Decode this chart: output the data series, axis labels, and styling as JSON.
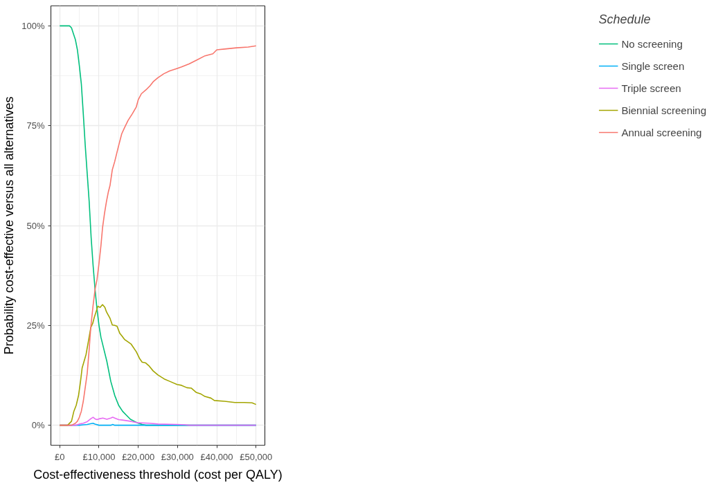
{
  "chart_data": {
    "type": "line",
    "xlabel": "Cost-effectiveness threshold (cost per QALY)",
    "ylabel": "Probability cost-effective versus all alternatives",
    "legend_title": "Schedule",
    "legend": "right",
    "grid": true,
    "line_style": "solid",
    "marker": "none",
    "xlim": [
      -2250,
      52250
    ],
    "ylim": [
      -5,
      105
    ],
    "xticks": [
      {
        "value": 0,
        "label": "£0"
      },
      {
        "value": 10000,
        "label": "£10,000"
      },
      {
        "value": 20000,
        "label": "£20,000"
      },
      {
        "value": 30000,
        "label": "£30,000"
      },
      {
        "value": 40000,
        "label": "£40,000"
      },
      {
        "value": 50000,
        "label": "£50,000"
      }
    ],
    "yticks": [
      {
        "value": 0,
        "label": "0%"
      },
      {
        "value": 25,
        "label": "25%"
      },
      {
        "value": 50,
        "label": "50%"
      },
      {
        "value": 75,
        "label": "75%"
      },
      {
        "value": 100,
        "label": "100%"
      }
    ],
    "series": [
      {
        "name": "No screening",
        "color": "#00bf7d",
        "x": [
          0,
          2000,
          2500,
          3000,
          3500,
          4000,
          4500,
          5000,
          5500,
          6000,
          6500,
          7000,
          7500,
          8000,
          8500,
          9000,
          9500,
          10000,
          10500,
          11000,
          12000,
          13000,
          14000,
          15000,
          16000,
          17000,
          18000,
          19000,
          20000,
          21000,
          22000,
          50000
        ],
        "values": [
          100,
          100,
          100,
          99.5,
          98,
          96.5,
          94,
          90,
          85.5,
          78,
          70,
          63,
          56,
          47,
          40,
          34,
          29,
          25,
          22,
          20,
          16,
          11,
          7.5,
          5,
          3.5,
          2.5,
          1.5,
          1,
          0.5,
          0.2,
          0,
          0
        ]
      },
      {
        "name": "Single screen",
        "color": "#00b0f6",
        "x": [
          0,
          5000,
          6000,
          7000,
          8000,
          8500,
          9000,
          10000,
          13000,
          13500,
          14000,
          50000
        ],
        "values": [
          0,
          0,
          0.1,
          0.2,
          0.4,
          0.5,
          0.3,
          0,
          0,
          0.2,
          0,
          0
        ]
      },
      {
        "name": "Triple screen",
        "color": "#e76bf3",
        "x": [
          0,
          4000,
          5000,
          6000,
          7000,
          8000,
          8500,
          9000,
          9500,
          10000,
          11000,
          12000,
          13000,
          13500,
          14000,
          15000,
          16000,
          18000,
          20000,
          23000,
          25000,
          30000,
          32000,
          33000,
          50000
        ],
        "values": [
          0,
          0,
          0.3,
          0.5,
          0.9,
          1.7,
          2,
          1.6,
          1.4,
          1.6,
          1.8,
          1.5,
          1.8,
          2,
          1.8,
          1.4,
          1.3,
          1,
          0.6,
          0.5,
          0.3,
          0.2,
          0.1,
          0,
          0
        ]
      },
      {
        "name": "Biennial screening",
        "color": "#a3a500",
        "x": [
          0,
          2000,
          3000,
          3600,
          4200,
          4800,
          5300,
          5700,
          6200,
          6700,
          7300,
          7900,
          8400,
          8800,
          9300,
          9700,
          10300,
          10900,
          11500,
          11900,
          12400,
          12800,
          13400,
          14000,
          14600,
          15300,
          15800,
          16500,
          17200,
          18200,
          19500,
          20400,
          21000,
          21900,
          22800,
          23800,
          25000,
          26600,
          28000,
          29900,
          31000,
          32400,
          33500,
          34800,
          36000,
          37000,
          38500,
          39400,
          42000,
          44600,
          47000,
          49000,
          50000
        ],
        "values": [
          0,
          0,
          1,
          3.5,
          5,
          7.5,
          11,
          14.3,
          16,
          17.7,
          21,
          24.4,
          25.5,
          27,
          28.5,
          29.8,
          29.5,
          30.2,
          29.5,
          28.4,
          27.5,
          26.8,
          25.1,
          25,
          24.8,
          23,
          22.4,
          21.5,
          21,
          20.3,
          18.4,
          16.6,
          15.8,
          15.6,
          14.8,
          13.6,
          12.6,
          11.6,
          11,
          10.2,
          10,
          9.4,
          9.3,
          8.2,
          7.8,
          7.2,
          6.8,
          6.2,
          6,
          5.7,
          5.7,
          5.6,
          5.2
        ]
      },
      {
        "name": "Annual screening",
        "color": "#f8766d",
        "x": [
          0,
          3000,
          4000,
          4500,
          5000,
          5500,
          6000,
          6400,
          7000,
          7500,
          7900,
          8500,
          9000,
          9500,
          10000,
          10500,
          10900,
          11400,
          11900,
          12400,
          12800,
          13400,
          14000,
          14900,
          15800,
          16500,
          17400,
          18500,
          19500,
          20000,
          20800,
          22000,
          23000,
          23800,
          25000,
          26500,
          28000,
          29500,
          31000,
          33000,
          35000,
          37000,
          39000,
          40000,
          42000,
          45000,
          48000,
          50000
        ],
        "values": [
          0,
          0,
          0.5,
          1,
          2,
          3.5,
          6,
          8.8,
          13,
          19,
          24.4,
          30,
          34,
          36.5,
          40.5,
          45,
          49.4,
          53,
          56,
          58.5,
          60,
          64,
          66,
          69.6,
          73,
          74.5,
          76.3,
          78,
          79.7,
          81.5,
          83,
          84,
          85,
          86,
          87,
          88,
          88.7,
          89.2,
          89.7,
          90.5,
          91.5,
          92.5,
          93,
          94,
          94.2,
          94.5,
          94.7,
          95
        ]
      }
    ]
  }
}
